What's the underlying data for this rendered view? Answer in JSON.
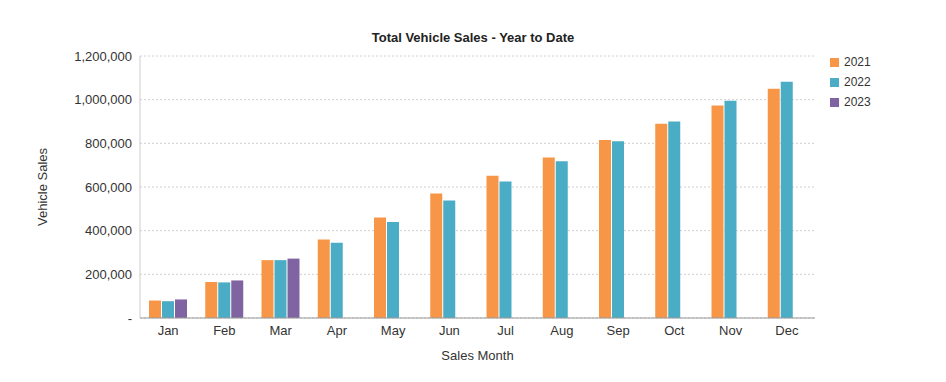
{
  "chart_data": {
    "type": "bar",
    "title": "Total Vehicle Sales - Year to Date",
    "x_label": "Sales Month",
    "y_label": "Vehicle Sales",
    "categories": [
      "Jan",
      "Feb",
      "Mar",
      "Apr",
      "May",
      "Jun",
      "Jul",
      "Aug",
      "Sep",
      "Oct",
      "Nov",
      "Dec"
    ],
    "series": [
      {
        "name": "2021",
        "color": "#f79646",
        "values": [
          80000,
          165000,
          265000,
          360000,
          460000,
          570000,
          652000,
          735000,
          815000,
          890000,
          973000,
          1050000
        ]
      },
      {
        "name": "2022",
        "color": "#4bacc6",
        "values": [
          77000,
          163000,
          265000,
          345000,
          440000,
          538000,
          625000,
          718000,
          810000,
          900000,
          995000,
          1082000
        ]
      },
      {
        "name": "2023",
        "color": "#8064a2",
        "values": [
          85000,
          172000,
          272000,
          null,
          null,
          null,
          null,
          null,
          null,
          null,
          null,
          null
        ]
      }
    ],
    "ylim": [
      0,
      1200000
    ],
    "yticks": [
      {
        "value": 0,
        "label": "-"
      },
      {
        "value": 200000,
        "label": "200,000"
      },
      {
        "value": 400000,
        "label": "400,000"
      },
      {
        "value": 600000,
        "label": "600,000"
      },
      {
        "value": 800000,
        "label": "800,000"
      },
      {
        "value": 1000000,
        "label": "1,000,000"
      },
      {
        "value": 1200000,
        "label": "1,200,000"
      }
    ],
    "grid": true,
    "legend": "right"
  }
}
